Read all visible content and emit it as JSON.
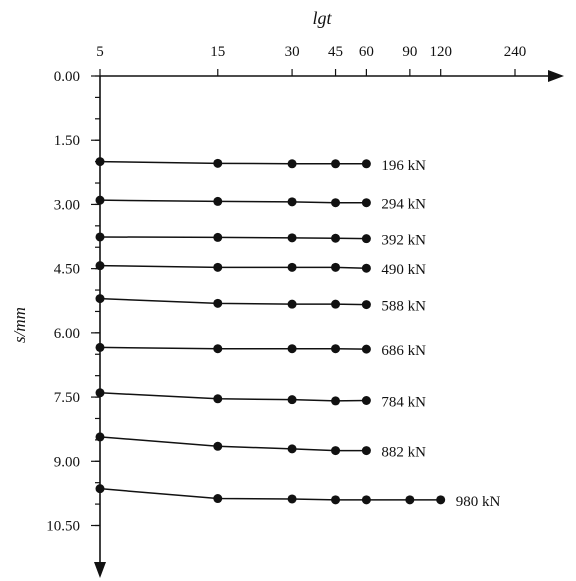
{
  "chart_data": {
    "type": "line",
    "title": "",
    "xlabel": "lgt",
    "ylabel": "s/mm",
    "x_scale": "log",
    "x_ticks": [
      5,
      15,
      30,
      45,
      60,
      90,
      120,
      240
    ],
    "x_tick_labels": [
      "5",
      "15",
      "30",
      "45",
      "60",
      "90",
      "120",
      "240"
    ],
    "y_ticks": [
      0,
      1.5,
      3.0,
      4.5,
      6.0,
      7.5,
      9.0,
      10.5
    ],
    "y_tick_labels": [
      "0.00",
      "1.50",
      "3.00",
      "4.50",
      "6.00",
      "7.50",
      "9.00",
      "10.50"
    ],
    "y_inverted": true,
    "axis_position": "top-left",
    "grid": false,
    "series": [
      {
        "name": "196 kN",
        "x": [
          5,
          15,
          30,
          45,
          60
        ],
        "y": [
          2.0,
          2.04,
          2.05,
          2.05,
          2.05
        ]
      },
      {
        "name": "294 kN",
        "x": [
          5,
          15,
          30,
          45,
          60
        ],
        "y": [
          2.9,
          2.93,
          2.94,
          2.96,
          2.96
        ]
      },
      {
        "name": "392 kN",
        "x": [
          5,
          15,
          30,
          45,
          60
        ],
        "y": [
          3.76,
          3.77,
          3.78,
          3.79,
          3.8
        ]
      },
      {
        "name": "490 kN",
        "x": [
          5,
          15,
          30,
          45,
          60
        ],
        "y": [
          4.43,
          4.47,
          4.47,
          4.47,
          4.49
        ]
      },
      {
        "name": "588 kN",
        "x": [
          5,
          15,
          30,
          45,
          60
        ],
        "y": [
          5.2,
          5.31,
          5.33,
          5.33,
          5.34
        ]
      },
      {
        "name": "686 kN",
        "x": [
          5,
          15,
          30,
          45,
          60
        ],
        "y": [
          6.34,
          6.37,
          6.37,
          6.37,
          6.38
        ]
      },
      {
        "name": "784 kN",
        "x": [
          5,
          15,
          30,
          45,
          60
        ],
        "y": [
          7.4,
          7.54,
          7.56,
          7.59,
          7.58
        ]
      },
      {
        "name": "882 kN",
        "x": [
          5,
          15,
          30,
          45,
          60
        ],
        "y": [
          8.43,
          8.65,
          8.71,
          8.75,
          8.75
        ]
      },
      {
        "name": "980 kN",
        "x": [
          5,
          15,
          30,
          45,
          60,
          90,
          120
        ],
        "y": [
          9.64,
          9.87,
          9.88,
          9.9,
          9.9,
          9.9,
          9.9
        ]
      }
    ]
  }
}
